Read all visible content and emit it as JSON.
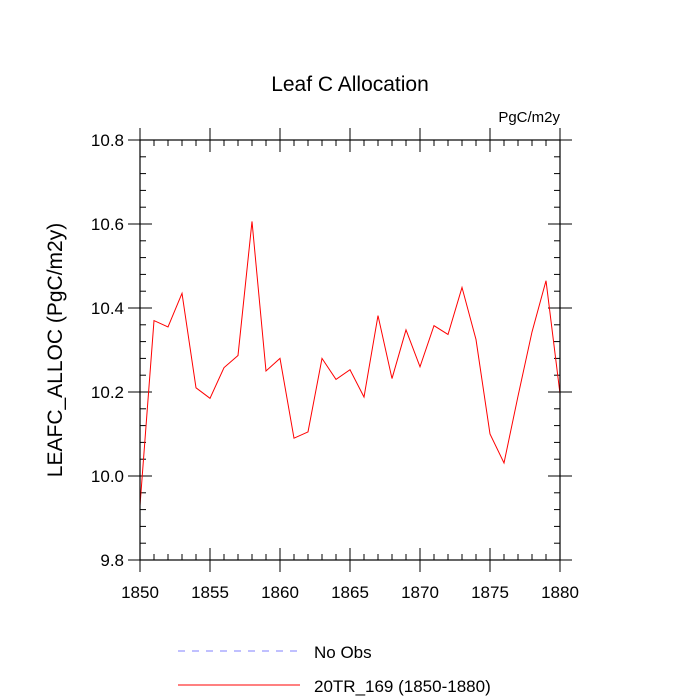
{
  "chart_data": {
    "type": "line",
    "title": "Leaf C Allocation",
    "units_label": "PgC/m2y",
    "xlabel": "",
    "ylabel": "LEAFC_ALLOC  (PgC/m2y)",
    "xlim": [
      1850,
      1880
    ],
    "ylim": [
      9.8,
      10.8
    ],
    "x_ticks": [
      1850,
      1855,
      1860,
      1865,
      1870,
      1875,
      1880
    ],
    "x_tick_labels": [
      "1850",
      "1855",
      "1860",
      "1865",
      "1870",
      "1875",
      "1880"
    ],
    "y_ticks": [
      9.8,
      10.0,
      10.2,
      10.4,
      10.6,
      10.8
    ],
    "y_tick_labels": [
      "9.8",
      "10.0",
      "10.2",
      "10.4",
      "10.6",
      "10.8"
    ],
    "series": [
      {
        "name": "20TR_169 (1850-1880)",
        "color": "#ff0000",
        "style": "solid",
        "x": [
          1850,
          1851,
          1852,
          1853,
          1854,
          1855,
          1856,
          1857,
          1858,
          1859,
          1860,
          1861,
          1862,
          1863,
          1864,
          1865,
          1866,
          1867,
          1868,
          1869,
          1870,
          1871,
          1872,
          1873,
          1874,
          1875,
          1876,
          1877,
          1878,
          1879,
          1880
        ],
        "values": [
          9.93,
          10.37,
          10.355,
          10.435,
          10.21,
          10.185,
          10.258,
          10.287,
          10.606,
          10.25,
          10.28,
          10.09,
          10.105,
          10.28,
          10.23,
          10.253,
          10.188,
          10.382,
          10.232,
          10.348,
          10.26,
          10.358,
          10.337,
          10.449,
          10.325,
          10.1,
          10.031,
          10.19,
          10.343,
          10.465,
          10.196
        ]
      }
    ],
    "legend": {
      "placement": "bottom-left",
      "entries": [
        {
          "label": "No Obs",
          "color": "#8080ff",
          "style": "dashed"
        },
        {
          "label": "20TR_169 (1850-1880)",
          "color": "#ff0000",
          "style": "solid"
        }
      ]
    }
  }
}
